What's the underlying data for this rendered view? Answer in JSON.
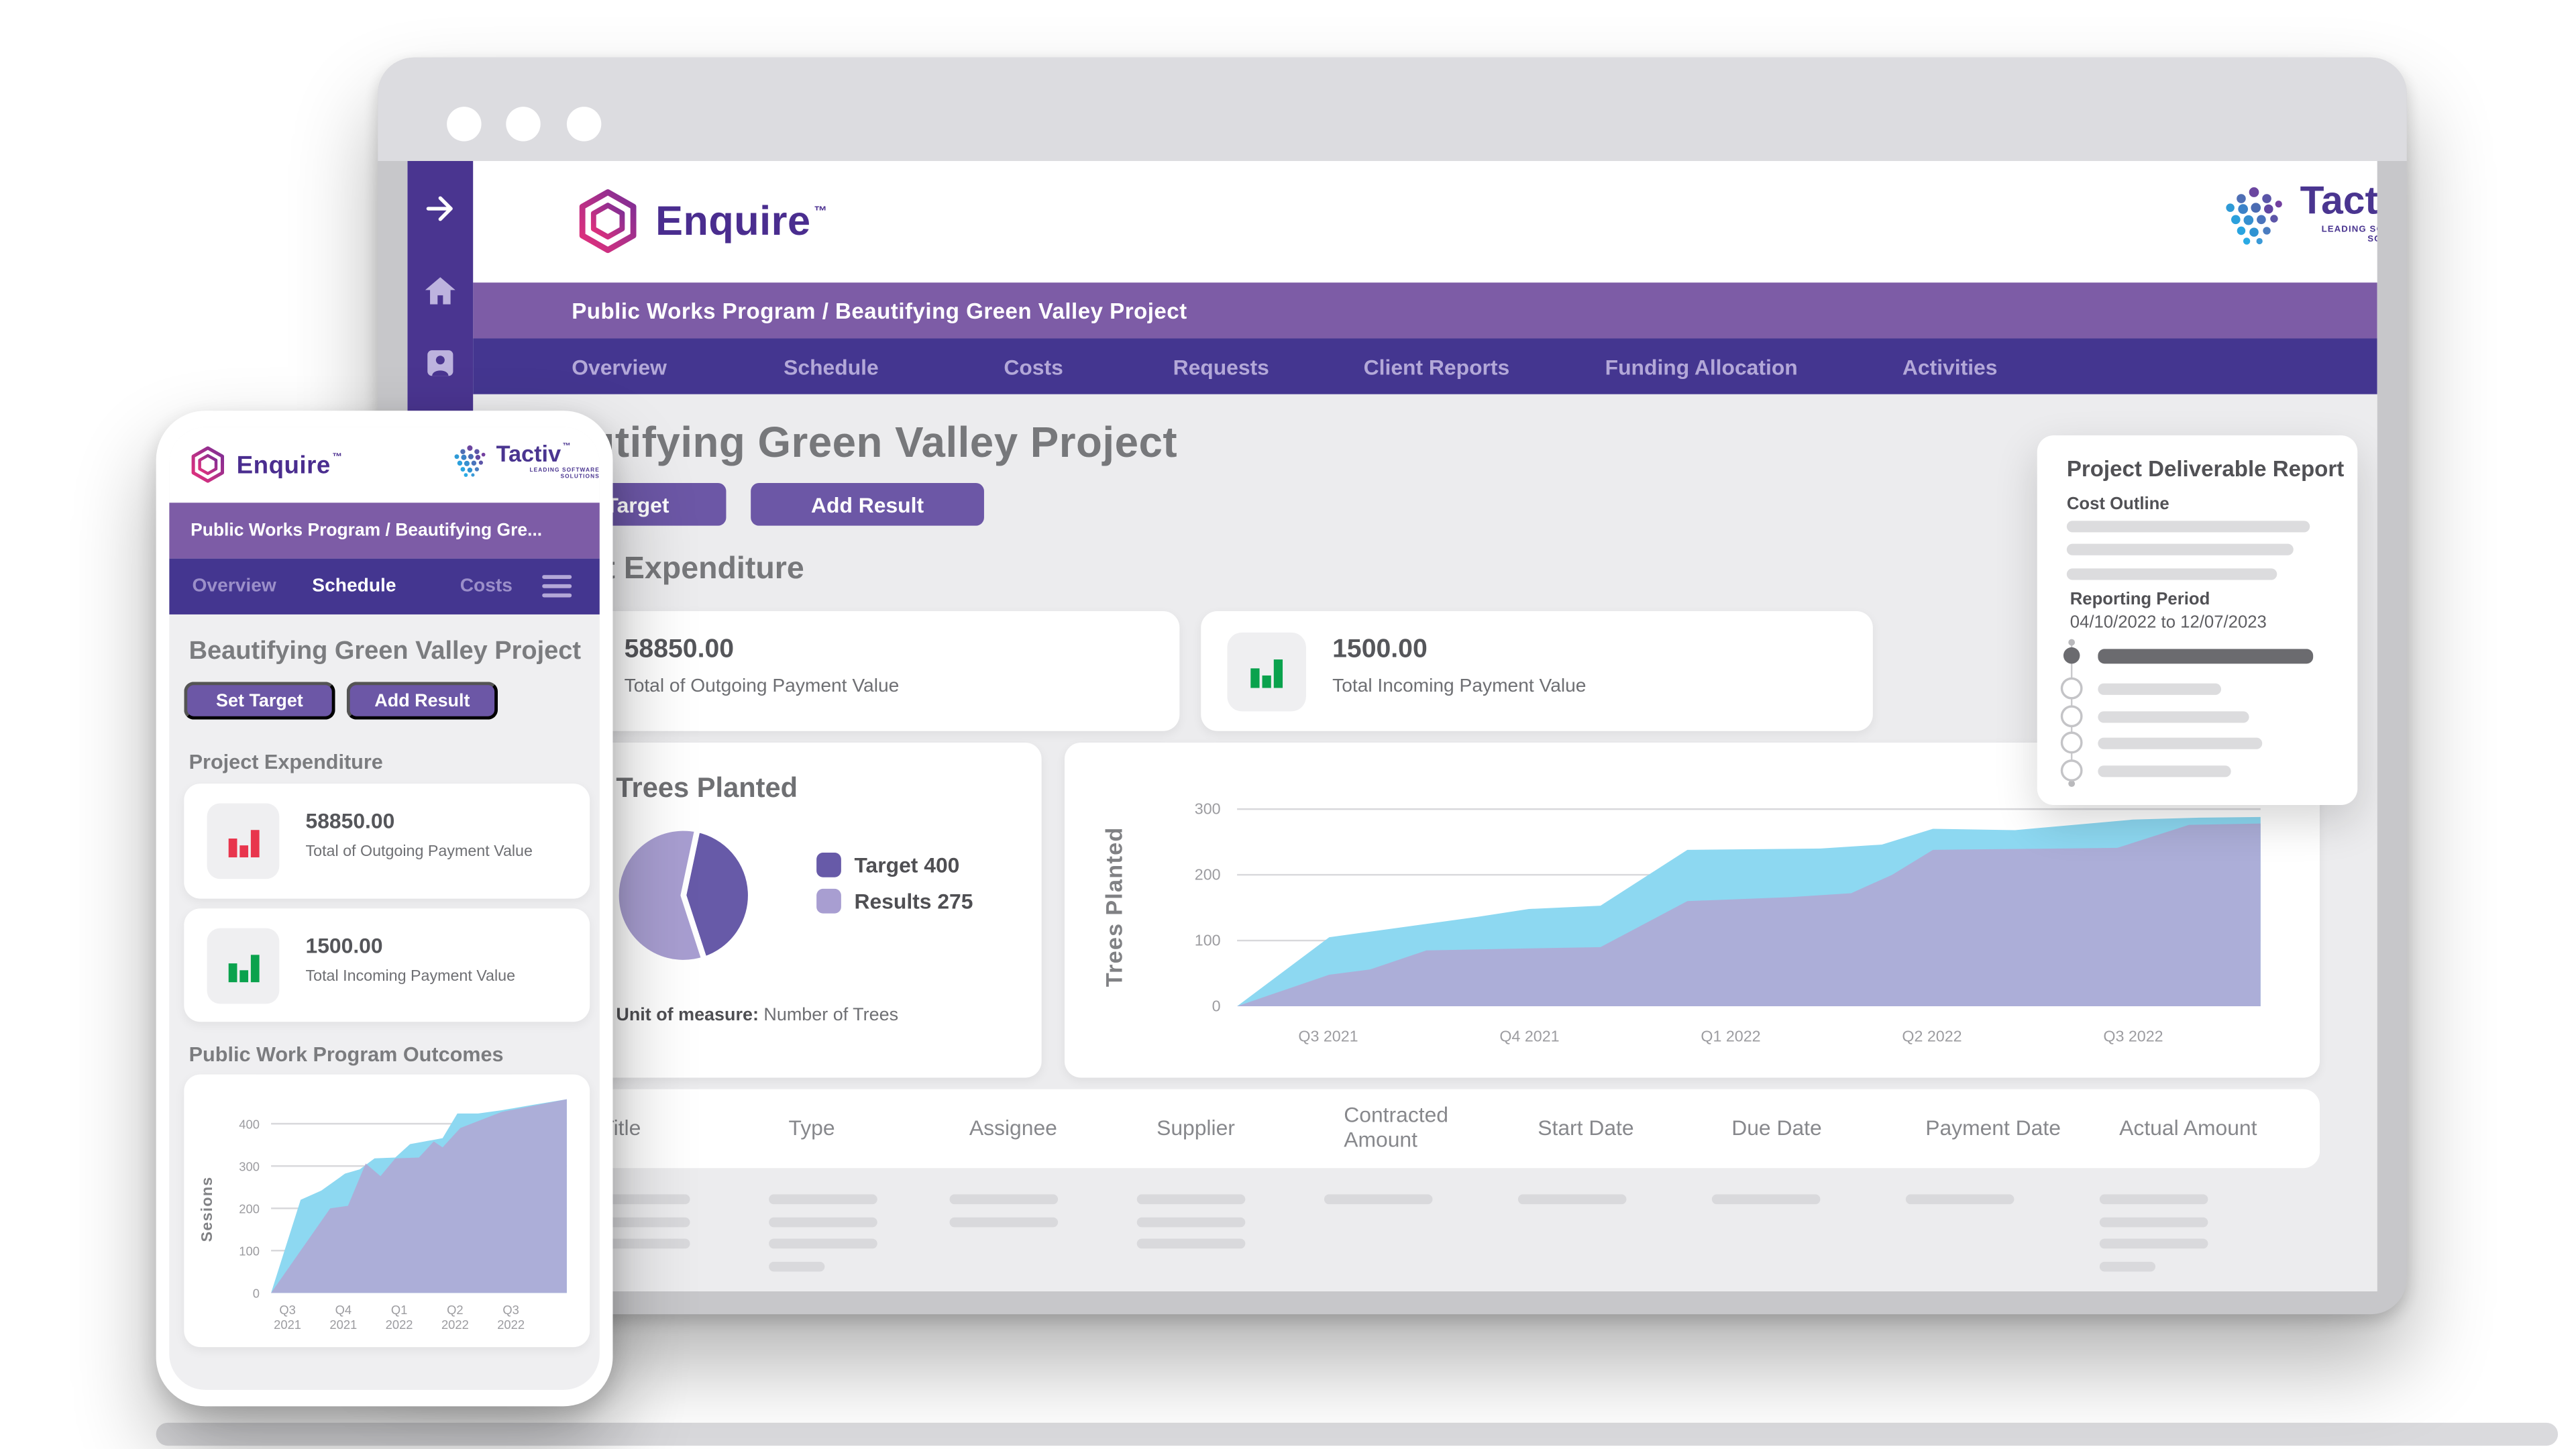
{
  "brand": {
    "enquire": "Enquire",
    "enquire_tm": "™",
    "tactiv": "Tactiv",
    "tactiv_tm": "™",
    "tactiv_subtitle": "LEADING SOFTWARE SOLUTIONS"
  },
  "desktop": {
    "breadcrumb": "Public Works Program / Beautifying Green Valley Project",
    "tabs": [
      "Overview",
      "Schedule",
      "Costs",
      "Requests",
      "Client Reports",
      "Funding Allocation",
      "Activities"
    ],
    "page_title": "Beautifying Green Valley Project",
    "set_target": "Set Target",
    "add_result": "Add Result",
    "expenditure_heading": "Project Expenditure",
    "cards": [
      {
        "value": "58850.00",
        "label": "Total of Outgoing Payment Value",
        "icon": "bar-chart-red",
        "icon_color": "#E8354D"
      },
      {
        "value": "1500.00",
        "label": "Total Incoming Payment Value",
        "icon": "bar-chart-green",
        "icon_color": "#0AA24D"
      }
    ],
    "trees": {
      "title": "Trees Planted",
      "legend": [
        {
          "label": "Target 400",
          "color": "#675AA8"
        },
        {
          "label": "Results 275",
          "color": "#A89ED1"
        }
      ],
      "unit_label": "Unit of measure:",
      "unit_value": " Number of Trees"
    },
    "report": {
      "title": "Project Deliverable Report",
      "cost_outline": "Cost Outline",
      "reporting_period": "Reporting Period",
      "period_value": "04/10/2022 to 12/07/2023",
      "cost_bars": [
        148,
        138,
        128
      ],
      "timeline": [
        {
          "w": 131,
          "dark": true
        },
        {
          "w": 75,
          "dark": false
        },
        {
          "w": 92,
          "dark": false
        },
        {
          "w": 100,
          "dark": false
        },
        {
          "w": 81,
          "dark": false
        }
      ]
    },
    "table": {
      "headers": [
        "Title",
        "Type",
        "Assignee",
        "Supplier",
        "Contracted Amount",
        "Start Date",
        "Due Date",
        "Payment Date",
        "Actual Amount"
      ],
      "skeleton_rows": [
        [
          1,
          1,
          1,
          1,
          1,
          1,
          1,
          1,
          1
        ],
        [
          1,
          1,
          1,
          1,
          0,
          0,
          0,
          0,
          1
        ],
        [
          1,
          1,
          0,
          1,
          0,
          0,
          0,
          0,
          1
        ],
        [
          0,
          2,
          0,
          0,
          0,
          0,
          0,
          0,
          2
        ]
      ]
    }
  },
  "mobile": {
    "breadcrumb": "Public Works Program / Beautifying Gre...",
    "tabs": [
      "Overview",
      "Schedule",
      "Costs"
    ],
    "active_tab": "Schedule",
    "page_title": "Beautifying Green Valley Project",
    "set_target": "Set Target",
    "add_result": "Add Result",
    "expenditure_heading": "Project Expenditure",
    "outcomes_heading": "Public Work Program Outcomes",
    "cards": [
      {
        "value": "58850.00",
        "label": "Total of Outgoing Payment Value",
        "icon": "bar-chart-red",
        "icon_color": "#E8354D"
      },
      {
        "value": "1500.00",
        "label": "Total Incoming Payment Value",
        "icon": "bar-chart-green",
        "icon_color": "#0AA24D"
      }
    ]
  },
  "chart_data": [
    {
      "id": "desktop-area",
      "type": "area",
      "title": "",
      "xlabel": "",
      "ylabel": "Trees Planted",
      "categories": [
        "Q3 2021",
        "Q4 2021",
        "Q1 2022",
        "Q2 2022",
        "Q3 2022"
      ],
      "yticks": [
        0,
        100,
        200,
        300
      ],
      "ylim": [
        0,
        312
      ],
      "grid": true,
      "legend_position": "none",
      "series": [
        {
          "name": "Target",
          "color": "#8DD8F1",
          "opacity": 1,
          "points": [
            [
              0,
              0
            ],
            [
              0.09,
              105
            ],
            [
              0.16,
              120
            ],
            [
              0.235,
              136
            ],
            [
              0.285,
              148
            ],
            [
              0.355,
              153
            ],
            [
              0.44,
              238
            ],
            [
              0.57,
              240
            ],
            [
              0.63,
              246
            ],
            [
              0.68,
              270
            ],
            [
              0.76,
              268
            ],
            [
              0.875,
              284
            ],
            [
              0.94,
              287
            ],
            [
              1,
              288
            ]
          ]
        },
        {
          "name": "Results",
          "color": "#B1A7D4",
          "opacity": 0.85,
          "points": [
            [
              0,
              0
            ],
            [
              0.09,
              48
            ],
            [
              0.13,
              56
            ],
            [
              0.185,
              85
            ],
            [
              0.285,
              88
            ],
            [
              0.355,
              90
            ],
            [
              0.44,
              160
            ],
            [
              0.54,
              166
            ],
            [
              0.6,
              172
            ],
            [
              0.64,
              200
            ],
            [
              0.68,
              238
            ],
            [
              0.86,
              241
            ],
            [
              0.93,
              276
            ],
            [
              1,
              278
            ]
          ]
        }
      ]
    },
    {
      "id": "trees-pie",
      "type": "pie",
      "title": "Trees Planted",
      "slices": [
        {
          "label": "Target",
          "value": 400,
          "color": "#675AA8"
        },
        {
          "label": "Results",
          "value": 275,
          "color": "#A89ED1"
        }
      ],
      "display_angles": {
        "dark_start": 12,
        "dark_end": 162
      },
      "unit": "Number of Trees"
    },
    {
      "id": "mobile-area",
      "type": "area",
      "title": "Public Work Program Outcomes",
      "xlabel": "",
      "ylabel": "Sesions",
      "categories": [
        "Q3 2021",
        "Q4 2021",
        "Q1 2022",
        "Q2 2022",
        "Q3 2022"
      ],
      "yticks": [
        0,
        100,
        200,
        300,
        400
      ],
      "ylim": [
        0,
        480
      ],
      "grid": true,
      "legend_position": "none",
      "series": [
        {
          "name": "Target",
          "color": "#8DD8F1",
          "opacity": 1,
          "points": [
            [
              0,
              0
            ],
            [
              0.1,
              220
            ],
            [
              0.17,
              242
            ],
            [
              0.25,
              282
            ],
            [
              0.3,
              292
            ],
            [
              0.35,
              318
            ],
            [
              0.42,
              320
            ],
            [
              0.47,
              352
            ],
            [
              0.55,
              362
            ],
            [
              0.58,
              366
            ],
            [
              0.63,
              424
            ],
            [
              0.7,
              424
            ],
            [
              0.78,
              432
            ],
            [
              0.88,
              444
            ],
            [
              1,
              458
            ]
          ]
        },
        {
          "name": "Results",
          "color": "#B1A7D4",
          "opacity": 0.85,
          "points": [
            [
              0,
              0
            ],
            [
              0.2,
              200
            ],
            [
              0.26,
              206
            ],
            [
              0.32,
              306
            ],
            [
              0.37,
              276
            ],
            [
              0.42,
              318
            ],
            [
              0.5,
              320
            ],
            [
              0.55,
              358
            ],
            [
              0.58,
              344
            ],
            [
              0.64,
              390
            ],
            [
              0.78,
              428
            ],
            [
              1,
              458
            ]
          ]
        }
      ]
    }
  ]
}
